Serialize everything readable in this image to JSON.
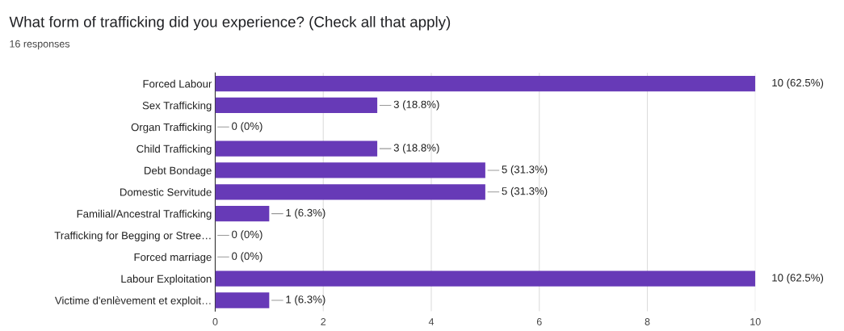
{
  "chart_data": {
    "type": "bar",
    "orientation": "horizontal",
    "title": "What form of trafficking did you experience? (Check all that apply)",
    "subtitle": "16 responses",
    "categories": [
      "Forced Labour",
      "Sex Trafficking",
      "Organ Trafficking",
      "Child Trafficking",
      "Debt Bondage",
      "Domestic Servitude",
      "Familial/Ancestral Trafficking",
      "Trafficking for Begging or Stree…",
      "Forced marriage",
      "Labour Exploitation",
      "Victime d'enlèvement et exploit…"
    ],
    "values": [
      10,
      3,
      0,
      3,
      5,
      5,
      1,
      0,
      0,
      10,
      1
    ],
    "value_labels": [
      "10 (62.5%)",
      "3 (18.8%)",
      "0 (0%)",
      "3 (18.8%)",
      "5 (31.3%)",
      "5 (31.3%)",
      "1 (6.3%)",
      "0 (0%)",
      "0 (0%)",
      "10 (62.5%)",
      "1 (6.3%)"
    ],
    "color": "#673ab7",
    "xlim": [
      0,
      10
    ],
    "xticks": [
      0,
      2,
      4,
      6,
      8,
      10
    ],
    "grid": "x"
  }
}
